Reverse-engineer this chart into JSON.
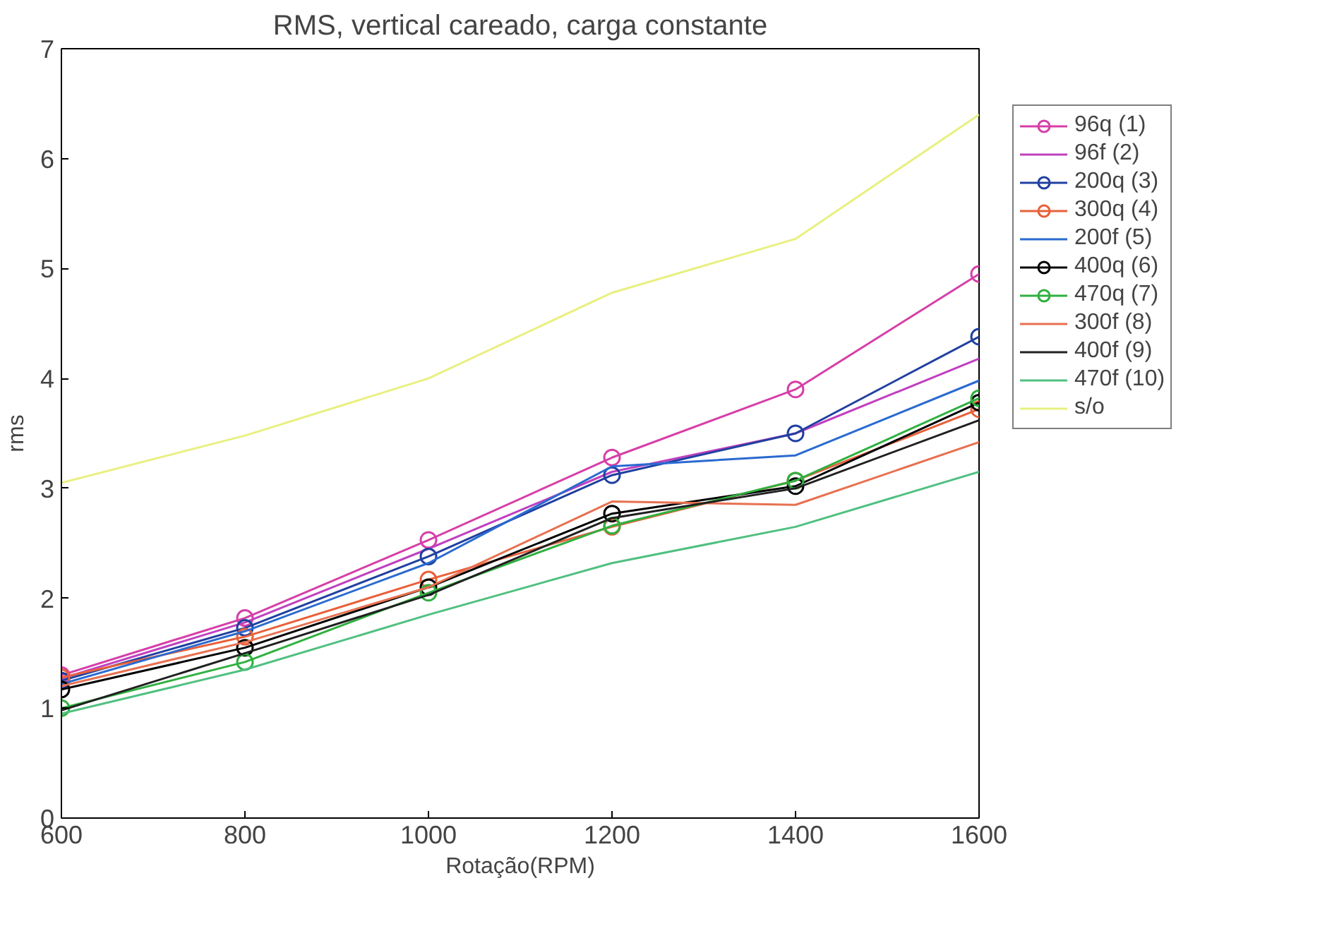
{
  "chart_data": {
    "type": "line",
    "title": "RMS, vertical careado, carga constante",
    "xlabel": "Rotação(RPM)",
    "ylabel": "rms",
    "x": [
      600,
      800,
      1000,
      1200,
      1400,
      1600
    ],
    "xlim": [
      600,
      1600
    ],
    "xticks": [
      600,
      800,
      1000,
      1200,
      1400,
      1600
    ],
    "ylim": [
      0,
      7
    ],
    "yticks": [
      0,
      1,
      2,
      3,
      4,
      5,
      6,
      7
    ],
    "grid": false,
    "legend": "right",
    "series": [
      {
        "name": "96q (1)",
        "color": "#d63fa8",
        "marker": "circle",
        "values": [
          1.3,
          1.82,
          2.53,
          3.28,
          3.9,
          4.95
        ]
      },
      {
        "name": "96f (2)",
        "color": "#c040c0",
        "marker": "none",
        "values": [
          1.27,
          1.78,
          2.45,
          3.15,
          3.5,
          4.18
        ]
      },
      {
        "name": "200q (3)",
        "color": "#2040a0",
        "marker": "circle",
        "values": [
          1.25,
          1.73,
          2.38,
          3.12,
          3.5,
          4.38
        ]
      },
      {
        "name": "300q (4)",
        "color": "#e8603a",
        "marker": "circle",
        "values": [
          1.28,
          1.65,
          2.17,
          2.65,
          3.07,
          3.72
        ]
      },
      {
        "name": "200f (5)",
        "color": "#2a6ad0",
        "marker": "none",
        "values": [
          1.22,
          1.7,
          2.32,
          3.2,
          3.3,
          3.98
        ]
      },
      {
        "name": "400q (6)",
        "color": "#000000",
        "marker": "circle",
        "values": [
          1.17,
          1.55,
          2.1,
          2.77,
          3.02,
          3.78
        ]
      },
      {
        "name": "470q (7)",
        "color": "#30b040",
        "marker": "circle",
        "values": [
          1.0,
          1.42,
          2.05,
          2.66,
          3.07,
          3.82
        ]
      },
      {
        "name": "300f (8)",
        "color": "#e87050",
        "marker": "none",
        "values": [
          1.2,
          1.6,
          2.1,
          2.88,
          2.85,
          3.42
        ]
      },
      {
        "name": "400f (9)",
        "color": "#202020",
        "marker": "none",
        "values": [
          0.98,
          1.5,
          2.03,
          2.73,
          3.0,
          3.62
        ]
      },
      {
        "name": "470f (10)",
        "color": "#50c080",
        "marker": "none",
        "values": [
          0.95,
          1.35,
          1.85,
          2.32,
          2.65,
          3.15
        ]
      },
      {
        "name": "s/o",
        "color": "#e8f080",
        "marker": "none",
        "values": [
          3.05,
          3.48,
          4.0,
          4.78,
          5.27,
          6.4
        ]
      }
    ]
  }
}
